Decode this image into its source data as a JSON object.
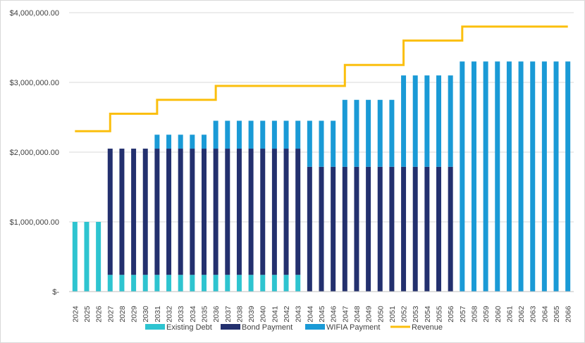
{
  "chart_data": {
    "type": "bar",
    "stacked": true,
    "ylim": [
      0,
      4000000
    ],
    "yticks": [
      0,
      1000000,
      2000000,
      3000000,
      4000000
    ],
    "ytick_labels": [
      "$-",
      "$1,000,000.00",
      "$2,000,000.00",
      "$3,000,000.00",
      "$4,000,000.00"
    ],
    "grid": true,
    "legend_position": "bottom",
    "categories": [
      "2024",
      "2025",
      "2026",
      "2027",
      "2028",
      "2029",
      "2030",
      "2031",
      "2032",
      "2033",
      "2034",
      "2035",
      "2036",
      "2037",
      "2038",
      "2039",
      "2040",
      "2041",
      "2042",
      "2043",
      "2044",
      "2045",
      "2046",
      "2047",
      "2048",
      "2049",
      "2050",
      "2051",
      "2052",
      "2053",
      "2054",
      "2055",
      "2056",
      "2057",
      "2058",
      "2059",
      "2060",
      "2061",
      "2062",
      "2063",
      "2064",
      "2065",
      "2066"
    ],
    "series": [
      {
        "name": "Existing Debt",
        "kind": "bar",
        "color": "#2ec4d0",
        "values": [
          1000000,
          1000000,
          1000000,
          240000,
          240000,
          240000,
          240000,
          240000,
          240000,
          240000,
          240000,
          240000,
          240000,
          240000,
          240000,
          240000,
          240000,
          240000,
          240000,
          240000,
          0,
          0,
          0,
          0,
          0,
          0,
          0,
          0,
          0,
          0,
          0,
          0,
          0,
          0,
          0,
          0,
          0,
          0,
          0,
          0,
          0,
          0,
          0
        ]
      },
      {
        "name": "Bond Payment",
        "kind": "bar",
        "color": "#23306e",
        "values": [
          0,
          0,
          0,
          1810000,
          1810000,
          1810000,
          1810000,
          1810000,
          1810000,
          1810000,
          1810000,
          1810000,
          1810000,
          1810000,
          1810000,
          1810000,
          1810000,
          1810000,
          1810000,
          1810000,
          1790000,
          1790000,
          1790000,
          1790000,
          1790000,
          1790000,
          1790000,
          1790000,
          1790000,
          1790000,
          1790000,
          1790000,
          1790000,
          0,
          0,
          0,
          0,
          0,
          0,
          0,
          0,
          0,
          0
        ]
      },
      {
        "name": "WIFIA Payment",
        "kind": "bar",
        "color": "#1a9ad6",
        "values": [
          0,
          0,
          0,
          0,
          0,
          0,
          0,
          200000,
          200000,
          200000,
          200000,
          200000,
          400000,
          400000,
          400000,
          400000,
          400000,
          400000,
          400000,
          400000,
          660000,
          660000,
          660000,
          960000,
          960000,
          960000,
          960000,
          960000,
          1310000,
          1310000,
          1310000,
          1310000,
          1310000,
          3300000,
          3300000,
          3300000,
          3300000,
          3300000,
          3300000,
          3300000,
          3300000,
          3300000,
          3300000
        ]
      },
      {
        "name": "Revenue",
        "kind": "line",
        "color": "#fbbf0e",
        "values": [
          2300000,
          2300000,
          2300000,
          2550000,
          2550000,
          2550000,
          2550000,
          2750000,
          2750000,
          2750000,
          2750000,
          2750000,
          2950000,
          2950000,
          2950000,
          2950000,
          2950000,
          2950000,
          2950000,
          2950000,
          2950000,
          2950000,
          2950000,
          3250000,
          3250000,
          3250000,
          3250000,
          3250000,
          3600000,
          3600000,
          3600000,
          3600000,
          3600000,
          3800000,
          3800000,
          3800000,
          3800000,
          3800000,
          3800000,
          3800000,
          3800000,
          3800000,
          3800000
        ]
      }
    ]
  }
}
